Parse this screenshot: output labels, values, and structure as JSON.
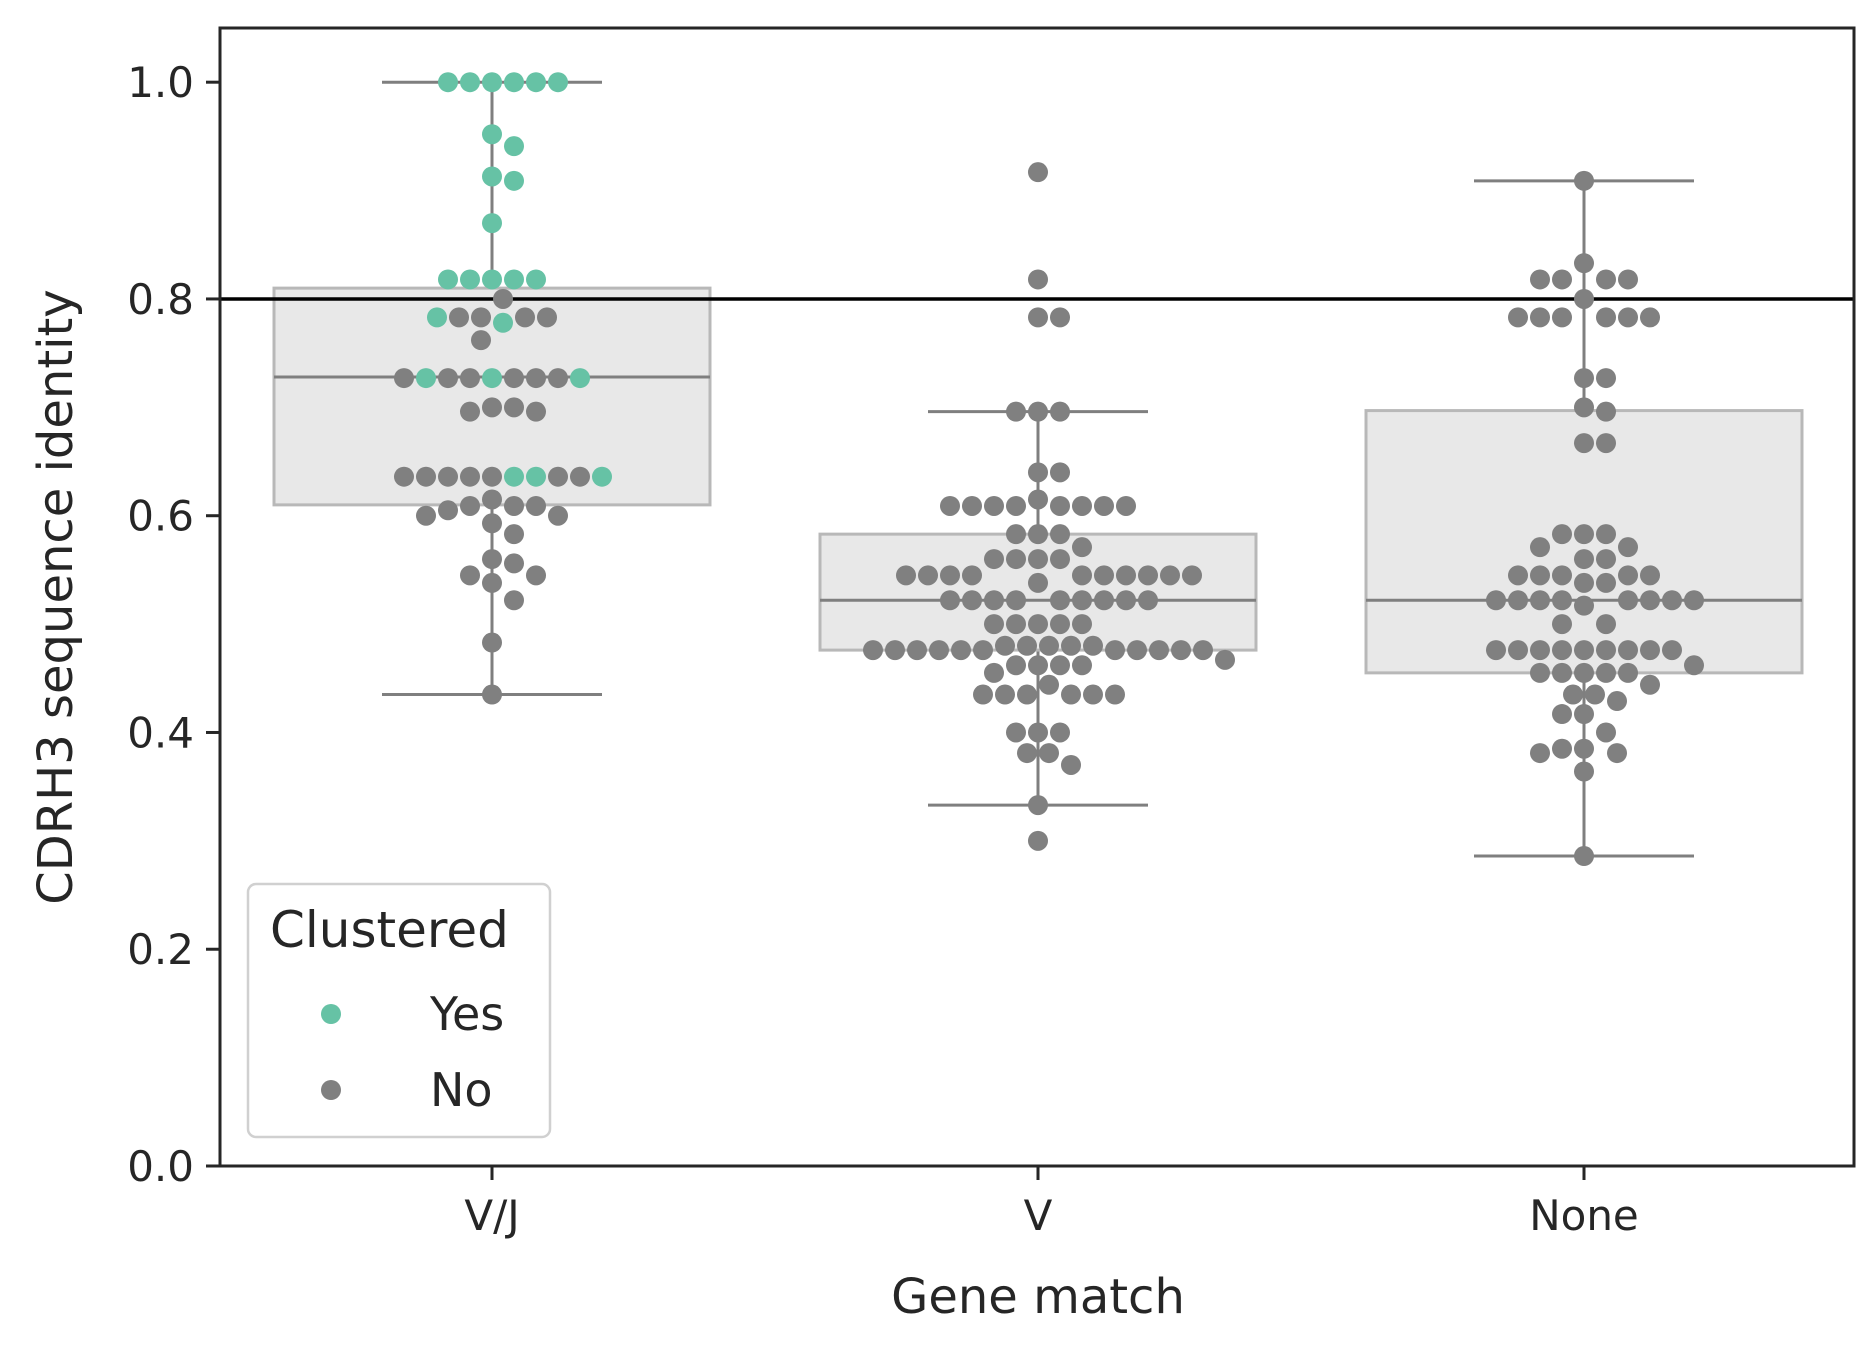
{
  "chart_data": {
    "type": "box+swarm",
    "title": "",
    "xlabel": "Gene match",
    "ylabel": "CDRH3 sequence identity",
    "ylim": [
      0.0,
      1.05
    ],
    "yticks": [
      0.0,
      0.2,
      0.4,
      0.6,
      0.8,
      1.0
    ],
    "ytick_labels": [
      "0.0",
      "0.2",
      "0.4",
      "0.6",
      "0.8",
      "1.0"
    ],
    "categories": [
      "V/J",
      "V",
      "None"
    ],
    "reference_line": 0.8,
    "colors": {
      "yes": "#66c2a5",
      "no": "#808080",
      "box_fill": "#e8e8e8",
      "box_edge": "#b8b8b8",
      "whisker": "#7f7f7f",
      "threshold": "#000000",
      "axes": "#262626"
    },
    "legend": {
      "title": "Clustered",
      "position": "lower-left",
      "entries": [
        {
          "label": "Yes",
          "key": "yes"
        },
        {
          "label": "No",
          "key": "no"
        }
      ]
    },
    "boxes": [
      {
        "category": "V/J",
        "whislo": 0.435,
        "q1": 0.61,
        "median": 0.728,
        "q3": 0.81,
        "whishi": 1.0
      },
      {
        "category": "V",
        "whislo": 0.333,
        "q1": 0.476,
        "median": 0.522,
        "q3": 0.583,
        "whishi": 0.696
      },
      {
        "category": "None",
        "whislo": 0.286,
        "q1": 0.455,
        "median": 0.522,
        "q3": 0.697,
        "whishi": 0.909
      }
    ],
    "series": [
      {
        "category": "V/J",
        "points": [
          {
            "y": 1.0,
            "clustered": "yes"
          },
          {
            "y": 1.0,
            "clustered": "yes"
          },
          {
            "y": 1.0,
            "clustered": "yes"
          },
          {
            "y": 1.0,
            "clustered": "yes"
          },
          {
            "y": 1.0,
            "clustered": "yes"
          },
          {
            "y": 1.0,
            "clustered": "yes"
          },
          {
            "y": 0.952,
            "clustered": "yes"
          },
          {
            "y": 0.941,
            "clustered": "yes"
          },
          {
            "y": 0.913,
            "clustered": "yes"
          },
          {
            "y": 0.909,
            "clustered": "yes"
          },
          {
            "y": 0.87,
            "clustered": "yes"
          },
          {
            "y": 0.818,
            "clustered": "yes"
          },
          {
            "y": 0.818,
            "clustered": "yes"
          },
          {
            "y": 0.818,
            "clustered": "yes"
          },
          {
            "y": 0.818,
            "clustered": "yes"
          },
          {
            "y": 0.818,
            "clustered": "yes"
          },
          {
            "y": 0.8,
            "clustered": "no"
          },
          {
            "y": 0.783,
            "clustered": "no"
          },
          {
            "y": 0.783,
            "clustered": "no"
          },
          {
            "y": 0.783,
            "clustered": "no"
          },
          {
            "y": 0.783,
            "clustered": "no"
          },
          {
            "y": 0.783,
            "clustered": "yes"
          },
          {
            "y": 0.778,
            "clustered": "yes"
          },
          {
            "y": 0.762,
            "clustered": "no"
          },
          {
            "y": 0.727,
            "clustered": "yes"
          },
          {
            "y": 0.727,
            "clustered": "no"
          },
          {
            "y": 0.727,
            "clustered": "no"
          },
          {
            "y": 0.727,
            "clustered": "no"
          },
          {
            "y": 0.727,
            "clustered": "no"
          },
          {
            "y": 0.727,
            "clustered": "no"
          },
          {
            "y": 0.727,
            "clustered": "yes"
          },
          {
            "y": 0.727,
            "clustered": "yes"
          },
          {
            "y": 0.727,
            "clustered": "no"
          },
          {
            "y": 0.7,
            "clustered": "no"
          },
          {
            "y": 0.7,
            "clustered": "no"
          },
          {
            "y": 0.696,
            "clustered": "no"
          },
          {
            "y": 0.696,
            "clustered": "no"
          },
          {
            "y": 0.636,
            "clustered": "no"
          },
          {
            "y": 0.636,
            "clustered": "yes"
          },
          {
            "y": 0.636,
            "clustered": "no"
          },
          {
            "y": 0.636,
            "clustered": "yes"
          },
          {
            "y": 0.636,
            "clustered": "no"
          },
          {
            "y": 0.636,
            "clustered": "no"
          },
          {
            "y": 0.636,
            "clustered": "no"
          },
          {
            "y": 0.636,
            "clustered": "no"
          },
          {
            "y": 0.636,
            "clustered": "no"
          },
          {
            "y": 0.636,
            "clustered": "yes"
          },
          {
            "y": 0.615,
            "clustered": "no"
          },
          {
            "y": 0.609,
            "clustered": "no"
          },
          {
            "y": 0.609,
            "clustered": "no"
          },
          {
            "y": 0.609,
            "clustered": "no"
          },
          {
            "y": 0.6,
            "clustered": "no"
          },
          {
            "y": 0.6,
            "clustered": "no"
          },
          {
            "y": 0.605,
            "clustered": "no"
          },
          {
            "y": 0.593,
            "clustered": "no"
          },
          {
            "y": 0.583,
            "clustered": "no"
          },
          {
            "y": 0.56,
            "clustered": "no"
          },
          {
            "y": 0.556,
            "clustered": "no"
          },
          {
            "y": 0.545,
            "clustered": "no"
          },
          {
            "y": 0.545,
            "clustered": "no"
          },
          {
            "y": 0.538,
            "clustered": "no"
          },
          {
            "y": 0.522,
            "clustered": "no"
          },
          {
            "y": 0.483,
            "clustered": "no"
          },
          {
            "y": 0.435,
            "clustered": "no"
          }
        ]
      },
      {
        "category": "V",
        "points": [
          {
            "y": 0.917,
            "clustered": "no"
          },
          {
            "y": 0.818,
            "clustered": "no"
          },
          {
            "y": 0.783,
            "clustered": "no"
          },
          {
            "y": 0.783,
            "clustered": "no"
          },
          {
            "y": 0.696,
            "clustered": "no"
          },
          {
            "y": 0.696,
            "clustered": "no"
          },
          {
            "y": 0.696,
            "clustered": "no"
          },
          {
            "y": 0.64,
            "clustered": "no"
          },
          {
            "y": 0.64,
            "clustered": "no"
          },
          {
            "y": 0.615,
            "clustered": "no"
          },
          {
            "y": 0.609,
            "clustered": "no"
          },
          {
            "y": 0.609,
            "clustered": "no"
          },
          {
            "y": 0.609,
            "clustered": "no"
          },
          {
            "y": 0.609,
            "clustered": "no"
          },
          {
            "y": 0.609,
            "clustered": "no"
          },
          {
            "y": 0.609,
            "clustered": "no"
          },
          {
            "y": 0.609,
            "clustered": "no"
          },
          {
            "y": 0.609,
            "clustered": "no"
          },
          {
            "y": 0.583,
            "clustered": "no"
          },
          {
            "y": 0.583,
            "clustered": "no"
          },
          {
            "y": 0.583,
            "clustered": "no"
          },
          {
            "y": 0.571,
            "clustered": "no"
          },
          {
            "y": 0.56,
            "clustered": "no"
          },
          {
            "y": 0.56,
            "clustered": "no"
          },
          {
            "y": 0.56,
            "clustered": "no"
          },
          {
            "y": 0.56,
            "clustered": "no"
          },
          {
            "y": 0.545,
            "clustered": "no"
          },
          {
            "y": 0.545,
            "clustered": "no"
          },
          {
            "y": 0.545,
            "clustered": "no"
          },
          {
            "y": 0.545,
            "clustered": "no"
          },
          {
            "y": 0.545,
            "clustered": "no"
          },
          {
            "y": 0.545,
            "clustered": "no"
          },
          {
            "y": 0.545,
            "clustered": "no"
          },
          {
            "y": 0.545,
            "clustered": "no"
          },
          {
            "y": 0.545,
            "clustered": "no"
          },
          {
            "y": 0.545,
            "clustered": "no"
          },
          {
            "y": 0.538,
            "clustered": "no"
          },
          {
            "y": 0.522,
            "clustered": "no"
          },
          {
            "y": 0.522,
            "clustered": "no"
          },
          {
            "y": 0.522,
            "clustered": "no"
          },
          {
            "y": 0.522,
            "clustered": "no"
          },
          {
            "y": 0.522,
            "clustered": "no"
          },
          {
            "y": 0.522,
            "clustered": "no"
          },
          {
            "y": 0.522,
            "clustered": "no"
          },
          {
            "y": 0.522,
            "clustered": "no"
          },
          {
            "y": 0.522,
            "clustered": "no"
          },
          {
            "y": 0.5,
            "clustered": "no"
          },
          {
            "y": 0.5,
            "clustered": "no"
          },
          {
            "y": 0.5,
            "clustered": "no"
          },
          {
            "y": 0.5,
            "clustered": "no"
          },
          {
            "y": 0.5,
            "clustered": "no"
          },
          {
            "y": 0.48,
            "clustered": "no"
          },
          {
            "y": 0.48,
            "clustered": "no"
          },
          {
            "y": 0.48,
            "clustered": "no"
          },
          {
            "y": 0.48,
            "clustered": "no"
          },
          {
            "y": 0.48,
            "clustered": "no"
          },
          {
            "y": 0.476,
            "clustered": "no"
          },
          {
            "y": 0.476,
            "clustered": "no"
          },
          {
            "y": 0.476,
            "clustered": "no"
          },
          {
            "y": 0.476,
            "clustered": "no"
          },
          {
            "y": 0.476,
            "clustered": "no"
          },
          {
            "y": 0.476,
            "clustered": "no"
          },
          {
            "y": 0.476,
            "clustered": "no"
          },
          {
            "y": 0.476,
            "clustered": "no"
          },
          {
            "y": 0.476,
            "clustered": "no"
          },
          {
            "y": 0.476,
            "clustered": "no"
          },
          {
            "y": 0.476,
            "clustered": "no"
          },
          {
            "y": 0.467,
            "clustered": "no"
          },
          {
            "y": 0.462,
            "clustered": "no"
          },
          {
            "y": 0.462,
            "clustered": "no"
          },
          {
            "y": 0.462,
            "clustered": "no"
          },
          {
            "y": 0.462,
            "clustered": "no"
          },
          {
            "y": 0.455,
            "clustered": "no"
          },
          {
            "y": 0.444,
            "clustered": "no"
          },
          {
            "y": 0.435,
            "clustered": "no"
          },
          {
            "y": 0.435,
            "clustered": "no"
          },
          {
            "y": 0.435,
            "clustered": "no"
          },
          {
            "y": 0.435,
            "clustered": "no"
          },
          {
            "y": 0.435,
            "clustered": "no"
          },
          {
            "y": 0.435,
            "clustered": "no"
          },
          {
            "y": 0.4,
            "clustered": "no"
          },
          {
            "y": 0.4,
            "clustered": "no"
          },
          {
            "y": 0.4,
            "clustered": "no"
          },
          {
            "y": 0.381,
            "clustered": "no"
          },
          {
            "y": 0.381,
            "clustered": "no"
          },
          {
            "y": 0.37,
            "clustered": "no"
          },
          {
            "y": 0.333,
            "clustered": "no"
          },
          {
            "y": 0.3,
            "clustered": "no"
          }
        ]
      },
      {
        "category": "None",
        "points": [
          {
            "y": 0.909,
            "clustered": "no"
          },
          {
            "y": 0.833,
            "clustered": "no"
          },
          {
            "y": 0.818,
            "clustered": "no"
          },
          {
            "y": 0.818,
            "clustered": "no"
          },
          {
            "y": 0.818,
            "clustered": "no"
          },
          {
            "y": 0.818,
            "clustered": "no"
          },
          {
            "y": 0.8,
            "clustered": "no"
          },
          {
            "y": 0.783,
            "clustered": "no"
          },
          {
            "y": 0.783,
            "clustered": "no"
          },
          {
            "y": 0.783,
            "clustered": "no"
          },
          {
            "y": 0.783,
            "clustered": "no"
          },
          {
            "y": 0.783,
            "clustered": "no"
          },
          {
            "y": 0.783,
            "clustered": "no"
          },
          {
            "y": 0.727,
            "clustered": "no"
          },
          {
            "y": 0.727,
            "clustered": "no"
          },
          {
            "y": 0.7,
            "clustered": "no"
          },
          {
            "y": 0.696,
            "clustered": "no"
          },
          {
            "y": 0.667,
            "clustered": "no"
          },
          {
            "y": 0.667,
            "clustered": "no"
          },
          {
            "y": 0.583,
            "clustered": "no"
          },
          {
            "y": 0.583,
            "clustered": "no"
          },
          {
            "y": 0.583,
            "clustered": "no"
          },
          {
            "y": 0.571,
            "clustered": "no"
          },
          {
            "y": 0.571,
            "clustered": "no"
          },
          {
            "y": 0.56,
            "clustered": "no"
          },
          {
            "y": 0.56,
            "clustered": "no"
          },
          {
            "y": 0.545,
            "clustered": "no"
          },
          {
            "y": 0.545,
            "clustered": "no"
          },
          {
            "y": 0.545,
            "clustered": "no"
          },
          {
            "y": 0.545,
            "clustered": "no"
          },
          {
            "y": 0.545,
            "clustered": "no"
          },
          {
            "y": 0.538,
            "clustered": "no"
          },
          {
            "y": 0.538,
            "clustered": "no"
          },
          {
            "y": 0.522,
            "clustered": "no"
          },
          {
            "y": 0.522,
            "clustered": "no"
          },
          {
            "y": 0.522,
            "clustered": "no"
          },
          {
            "y": 0.522,
            "clustered": "no"
          },
          {
            "y": 0.522,
            "clustered": "no"
          },
          {
            "y": 0.522,
            "clustered": "no"
          },
          {
            "y": 0.522,
            "clustered": "no"
          },
          {
            "y": 0.522,
            "clustered": "no"
          },
          {
            "y": 0.517,
            "clustered": "no"
          },
          {
            "y": 0.5,
            "clustered": "no"
          },
          {
            "y": 0.5,
            "clustered": "no"
          },
          {
            "y": 0.476,
            "clustered": "no"
          },
          {
            "y": 0.476,
            "clustered": "no"
          },
          {
            "y": 0.476,
            "clustered": "no"
          },
          {
            "y": 0.476,
            "clustered": "no"
          },
          {
            "y": 0.476,
            "clustered": "no"
          },
          {
            "y": 0.476,
            "clustered": "no"
          },
          {
            "y": 0.476,
            "clustered": "no"
          },
          {
            "y": 0.476,
            "clustered": "no"
          },
          {
            "y": 0.476,
            "clustered": "no"
          },
          {
            "y": 0.462,
            "clustered": "no"
          },
          {
            "y": 0.455,
            "clustered": "no"
          },
          {
            "y": 0.455,
            "clustered": "no"
          },
          {
            "y": 0.455,
            "clustered": "no"
          },
          {
            "y": 0.455,
            "clustered": "no"
          },
          {
            "y": 0.455,
            "clustered": "no"
          },
          {
            "y": 0.444,
            "clustered": "no"
          },
          {
            "y": 0.435,
            "clustered": "no"
          },
          {
            "y": 0.435,
            "clustered": "no"
          },
          {
            "y": 0.429,
            "clustered": "no"
          },
          {
            "y": 0.417,
            "clustered": "no"
          },
          {
            "y": 0.417,
            "clustered": "no"
          },
          {
            "y": 0.4,
            "clustered": "no"
          },
          {
            "y": 0.385,
            "clustered": "no"
          },
          {
            "y": 0.385,
            "clustered": "no"
          },
          {
            "y": 0.381,
            "clustered": "no"
          },
          {
            "y": 0.381,
            "clustered": "no"
          },
          {
            "y": 0.364,
            "clustered": "no"
          },
          {
            "y": 0.286,
            "clustered": "no"
          }
        ]
      }
    ]
  }
}
